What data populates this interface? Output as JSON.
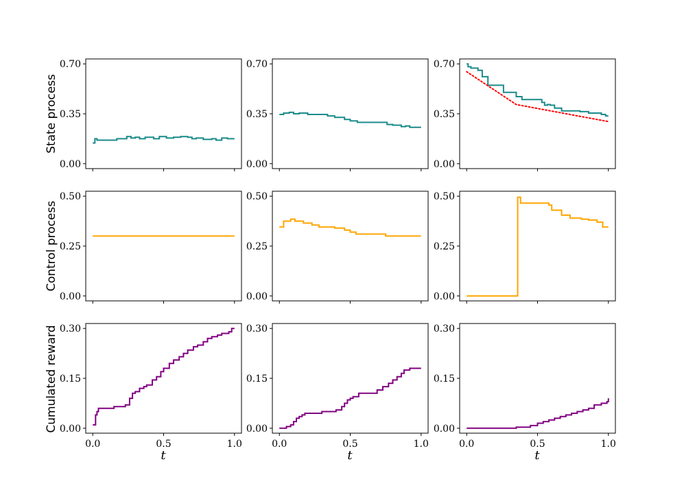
{
  "figure": {
    "row_labels": [
      "State process",
      "Control process",
      "Cumulated reward"
    ],
    "x_label": "t",
    "x_ticks": [
      "0.0",
      "0.5",
      "1.0"
    ]
  },
  "colors": {
    "state": "#1a8a8a",
    "control": "#ffa500",
    "reward": "#800080",
    "reference": "#ff0000"
  },
  "chart_data": [
    {
      "type": "line",
      "row": 0,
      "col": 0,
      "ylabel": "State process",
      "xlim": [
        0,
        1
      ],
      "ylim": [
        0,
        0.7
      ],
      "yticks": [
        "0.00",
        "0.35",
        "0.70"
      ],
      "grid": false,
      "series": [
        {
          "step": true,
          "x": [
            0,
            0.015,
            0.03,
            0.17,
            0.24,
            0.27,
            0.3,
            0.33,
            0.37,
            0.43,
            0.47,
            0.52,
            0.57,
            0.62,
            0.67,
            0.7,
            0.73,
            0.78,
            0.84,
            0.87,
            0.91,
            0.95,
            1.0
          ],
          "y": [
            0.145,
            0.175,
            0.165,
            0.175,
            0.19,
            0.18,
            0.185,
            0.175,
            0.185,
            0.175,
            0.19,
            0.18,
            0.185,
            0.19,
            0.185,
            0.175,
            0.18,
            0.17,
            0.175,
            0.165,
            0.18,
            0.175,
            0.175
          ]
        }
      ]
    },
    {
      "type": "line",
      "row": 0,
      "col": 1,
      "xlim": [
        0,
        1
      ],
      "ylim": [
        0,
        0.7
      ],
      "yticks": [
        "0.00",
        "0.35",
        "0.70"
      ],
      "grid": false,
      "series": [
        {
          "step": true,
          "x": [
            0,
            0.03,
            0.07,
            0.1,
            0.14,
            0.2,
            0.28,
            0.34,
            0.39,
            0.46,
            0.5,
            0.55,
            0.57,
            0.76,
            0.8,
            0.86,
            0.89,
            0.92,
            1.0
          ],
          "y": [
            0.345,
            0.355,
            0.36,
            0.35,
            0.355,
            0.345,
            0.345,
            0.335,
            0.325,
            0.31,
            0.3,
            0.29,
            0.29,
            0.275,
            0.27,
            0.26,
            0.265,
            0.255,
            0.255
          ]
        }
      ]
    },
    {
      "type": "line",
      "row": 0,
      "col": 2,
      "xlim": [
        0,
        1
      ],
      "ylim": [
        0,
        0.7
      ],
      "yticks": [
        "0.00",
        "0.35",
        "0.70"
      ],
      "grid": false,
      "series": [
        {
          "step": true,
          "x": [
            0,
            0.01,
            0.03,
            0.08,
            0.11,
            0.15,
            0.26,
            0.35,
            0.37,
            0.39,
            0.53,
            0.55,
            0.57,
            0.59,
            0.62,
            0.67,
            0.73,
            0.8,
            0.86,
            0.9,
            0.95,
            0.98,
            1.0
          ],
          "y": [
            0.7,
            0.68,
            0.67,
            0.655,
            0.61,
            0.55,
            0.5,
            0.47,
            0.47,
            0.45,
            0.43,
            0.41,
            0.415,
            0.41,
            0.39,
            0.37,
            0.37,
            0.365,
            0.355,
            0.355,
            0.345,
            0.335,
            0.335
          ]
        },
        {
          "name": "",
          "style": "dotted",
          "x": [
            0,
            0.35,
            1.0
          ],
          "y": [
            0.645,
            0.415,
            0.295
          ]
        }
      ]
    },
    {
      "type": "line",
      "row": 1,
      "col": 0,
      "ylabel": "Control process",
      "xlim": [
        0,
        1
      ],
      "ylim": [
        0,
        0.5
      ],
      "yticks": [
        "0.00",
        "0.25",
        "0.50"
      ],
      "grid": false,
      "series": [
        {
          "step": true,
          "x": [
            0,
            1.0
          ],
          "y": [
            0.3,
            0.3
          ]
        }
      ]
    },
    {
      "type": "line",
      "row": 1,
      "col": 1,
      "xlim": [
        0,
        1
      ],
      "ylim": [
        0,
        0.5
      ],
      "yticks": [
        "0.00",
        "0.25",
        "0.50"
      ],
      "grid": false,
      "series": [
        {
          "step": true,
          "x": [
            0,
            0.03,
            0.08,
            0.11,
            0.17,
            0.23,
            0.28,
            0.39,
            0.46,
            0.5,
            0.54,
            0.75,
            0.8,
            1.0
          ],
          "y": [
            0.345,
            0.375,
            0.385,
            0.375,
            0.365,
            0.355,
            0.345,
            0.34,
            0.33,
            0.32,
            0.31,
            0.3,
            0.3,
            0.3
          ]
        }
      ]
    },
    {
      "type": "line",
      "row": 1,
      "col": 2,
      "xlim": [
        0,
        1
      ],
      "ylim": [
        0,
        0.5
      ],
      "yticks": [
        "0.00",
        "0.25",
        "0.50"
      ],
      "grid": false,
      "series": [
        {
          "step": true,
          "x": [
            0,
            0.35,
            0.36,
            0.38,
            0.55,
            0.58,
            0.6,
            0.67,
            0.73,
            0.81,
            0.86,
            0.92,
            0.96,
            1.0
          ],
          "y": [
            0,
            0,
            0.495,
            0.465,
            0.465,
            0.455,
            0.43,
            0.405,
            0.39,
            0.385,
            0.38,
            0.37,
            0.345,
            0.345
          ]
        }
      ]
    },
    {
      "type": "line",
      "row": 2,
      "col": 0,
      "ylabel": "Cumulated reward",
      "xlim": [
        0,
        1
      ],
      "ylim": [
        0,
        0.3
      ],
      "yticks": [
        "0.00",
        "0.15",
        "0.30"
      ],
      "grid": false,
      "series": [
        {
          "step": true,
          "x": [
            0,
            0.02,
            0.03,
            0.04,
            0.15,
            0.23,
            0.26,
            0.28,
            0.3,
            0.33,
            0.36,
            0.38,
            0.42,
            0.45,
            0.48,
            0.5,
            0.54,
            0.57,
            0.61,
            0.64,
            0.67,
            0.71,
            0.74,
            0.78,
            0.81,
            0.84,
            0.88,
            0.91,
            0.96,
            0.98,
            1.0
          ],
          "y": [
            0.01,
            0.04,
            0.05,
            0.06,
            0.065,
            0.07,
            0.09,
            0.105,
            0.11,
            0.12,
            0.125,
            0.13,
            0.145,
            0.155,
            0.17,
            0.18,
            0.195,
            0.205,
            0.215,
            0.225,
            0.235,
            0.245,
            0.25,
            0.26,
            0.27,
            0.275,
            0.28,
            0.285,
            0.29,
            0.3,
            0.3
          ]
        }
      ]
    },
    {
      "type": "line",
      "row": 2,
      "col": 1,
      "xlim": [
        0,
        1
      ],
      "ylim": [
        0,
        0.3
      ],
      "yticks": [
        "0.00",
        "0.15",
        "0.30"
      ],
      "grid": false,
      "series": [
        {
          "step": true,
          "x": [
            0,
            0.05,
            0.08,
            0.1,
            0.12,
            0.14,
            0.16,
            0.18,
            0.21,
            0.3,
            0.4,
            0.44,
            0.46,
            0.48,
            0.5,
            0.52,
            0.56,
            0.69,
            0.73,
            0.77,
            0.8,
            0.83,
            0.86,
            0.88,
            0.92,
            1.0
          ],
          "y": [
            0,
            0.005,
            0.01,
            0.02,
            0.03,
            0.035,
            0.04,
            0.045,
            0.045,
            0.05,
            0.055,
            0.065,
            0.075,
            0.085,
            0.09,
            0.095,
            0.105,
            0.115,
            0.125,
            0.135,
            0.145,
            0.155,
            0.165,
            0.175,
            0.18,
            0.18
          ]
        }
      ]
    },
    {
      "type": "line",
      "row": 2,
      "col": 2,
      "xlim": [
        0,
        1
      ],
      "ylim": [
        0,
        0.3
      ],
      "yticks": [
        "0.00",
        "0.15",
        "0.30"
      ],
      "grid": false,
      "series": [
        {
          "step": true,
          "x": [
            0,
            0.35,
            0.45,
            0.5,
            0.54,
            0.58,
            0.62,
            0.66,
            0.7,
            0.74,
            0.78,
            0.82,
            0.86,
            0.9,
            0.95,
            0.99,
            1.0
          ],
          "y": [
            0,
            0.003,
            0.008,
            0.015,
            0.02,
            0.025,
            0.03,
            0.035,
            0.04,
            0.045,
            0.05,
            0.055,
            0.06,
            0.07,
            0.075,
            0.08,
            0.09
          ]
        }
      ]
    }
  ]
}
